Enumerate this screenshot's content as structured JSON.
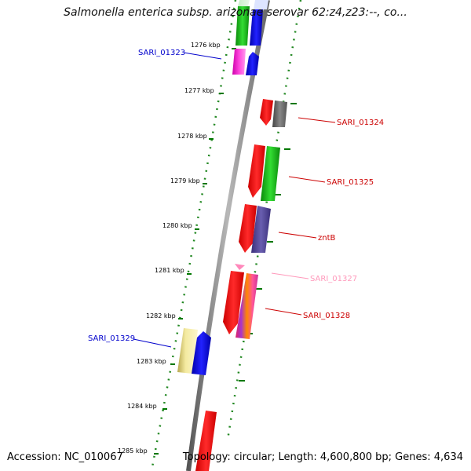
{
  "title": "Salmonella enterica subsp. arizonae serovar 62:z4,z23:--, co...",
  "footer": {
    "accession": "Accession: NC_010067",
    "topology": "Topology: circular; Length: 4,600,800 bp; Genes: 4,634"
  },
  "ticks": [
    "1276 kbp",
    "1277 kbp",
    "1278 kbp",
    "1279 kbp",
    "1280 kbp",
    "1281 kbp",
    "1282 kbp",
    "1283 kbp",
    "1284 kbp",
    "1285 kbp"
  ],
  "gene_labels": [
    {
      "text": "SARI_01323",
      "color": "#0000cc"
    },
    {
      "text": "SARI_01324",
      "color": "#cc0000"
    },
    {
      "text": "SARI_01325",
      "color": "#cc0000"
    },
    {
      "text": "zntB",
      "color": "#cc0000"
    },
    {
      "text": "SARI_01327",
      "color": "#ff99bb"
    },
    {
      "text": "SARI_01328",
      "color": "#cc0000"
    },
    {
      "text": "SARI_01329",
      "color": "#0000cc"
    }
  ],
  "colors": {
    "backbone": "#8a8a8a",
    "dotted_track": "#228822",
    "kbp_tick": "#007700",
    "cds_red": "#ff0000",
    "cds_blue": "#0000ee"
  }
}
